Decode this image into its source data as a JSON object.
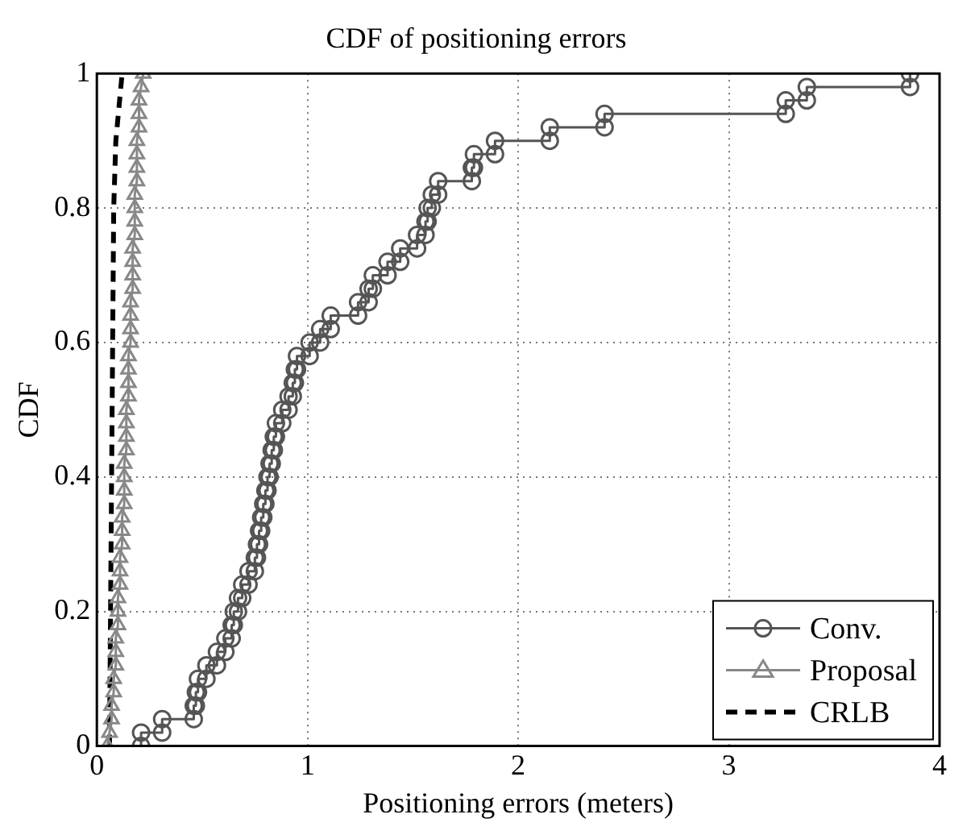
{
  "chart_data": {
    "type": "line",
    "title": "CDF of positioning errors",
    "xlabel": "Positioning errors (meters)",
    "ylabel": "CDF",
    "xlim": [
      0,
      4
    ],
    "xticks": [
      0,
      1,
      2,
      3,
      4
    ],
    "ylim": [
      0,
      1
    ],
    "yticks": [
      0,
      0.2,
      0.4,
      0.6,
      0.8,
      1
    ],
    "grid": true,
    "legend": "bottom right",
    "series": [
      {
        "name": "Conv.",
        "color": "#555555",
        "marker": "circle",
        "line_style": "solid",
        "x": [
          0.21,
          0.21,
          0.31,
          0.31,
          0.46,
          0.46,
          0.47,
          0.47,
          0.48,
          0.48,
          0.52,
          0.52,
          0.57,
          0.57,
          0.61,
          0.61,
          0.64,
          0.64,
          0.65,
          0.65,
          0.67,
          0.67,
          0.69,
          0.69,
          0.72,
          0.72,
          0.75,
          0.75,
          0.76,
          0.76,
          0.77,
          0.77,
          0.78,
          0.78,
          0.79,
          0.79,
          0.8,
          0.8,
          0.81,
          0.81,
          0.82,
          0.82,
          0.83,
          0.83,
          0.84,
          0.84,
          0.85,
          0.85,
          0.88,
          0.88,
          0.91,
          0.91,
          0.93,
          0.93,
          0.94,
          0.94,
          0.95,
          0.95,
          1.01,
          1.01,
          1.06,
          1.06,
          1.11,
          1.11,
          1.24,
          1.24,
          1.29,
          1.29,
          1.31,
          1.31,
          1.38,
          1.38,
          1.44,
          1.44,
          1.52,
          1.52,
          1.56,
          1.56,
          1.57,
          1.57,
          1.59,
          1.59,
          1.62,
          1.62,
          1.78,
          1.78,
          1.79,
          1.79,
          1.89,
          1.89,
          2.15,
          2.15,
          2.41,
          2.41,
          3.27,
          3.27,
          3.37,
          3.37,
          3.86,
          3.86
        ],
        "values": [
          0,
          0.02,
          0.02,
          0.04,
          0.04,
          0.06,
          0.06,
          0.08,
          0.08,
          0.1,
          0.1,
          0.12,
          0.12,
          0.14,
          0.14,
          0.16,
          0.16,
          0.18,
          0.18,
          0.2,
          0.2,
          0.22,
          0.22,
          0.24,
          0.24,
          0.26,
          0.26,
          0.28,
          0.28,
          0.3,
          0.3,
          0.32,
          0.32,
          0.34,
          0.34,
          0.36,
          0.36,
          0.38,
          0.38,
          0.4,
          0.4,
          0.42,
          0.42,
          0.44,
          0.44,
          0.46,
          0.46,
          0.48,
          0.48,
          0.5,
          0.5,
          0.52,
          0.52,
          0.54,
          0.54,
          0.56,
          0.56,
          0.58,
          0.58,
          0.6,
          0.6,
          0.62,
          0.62,
          0.64,
          0.64,
          0.66,
          0.66,
          0.68,
          0.68,
          0.7,
          0.7,
          0.72,
          0.72,
          0.74,
          0.74,
          0.76,
          0.76,
          0.78,
          0.78,
          0.8,
          0.8,
          0.82,
          0.82,
          0.84,
          0.84,
          0.86,
          0.86,
          0.88,
          0.88,
          0.9,
          0.9,
          0.92,
          0.92,
          0.94,
          0.94,
          0.96,
          0.96,
          0.98,
          0.98,
          1
        ]
      },
      {
        "name": "Proposal",
        "color": "#888888",
        "marker": "triangle",
        "line_style": "solid",
        "x": [
          0.05,
          0.06,
          0.07,
          0.07,
          0.08,
          0.08,
          0.09,
          0.09,
          0.09,
          0.1,
          0.1,
          0.1,
          0.11,
          0.11,
          0.11,
          0.12,
          0.12,
          0.12,
          0.13,
          0.13,
          0.13,
          0.13,
          0.14,
          0.14,
          0.14,
          0.14,
          0.15,
          0.15,
          0.15,
          0.15,
          0.16,
          0.16,
          0.16,
          0.16,
          0.17,
          0.17,
          0.17,
          0.17,
          0.18,
          0.18,
          0.18,
          0.18,
          0.19,
          0.19,
          0.19,
          0.19,
          0.2,
          0.2,
          0.2,
          0.21,
          0.22
        ],
        "values": [
          0,
          0.02,
          0.04,
          0.06,
          0.08,
          0.1,
          0.12,
          0.14,
          0.16,
          0.18,
          0.2,
          0.22,
          0.24,
          0.26,
          0.28,
          0.3,
          0.32,
          0.34,
          0.36,
          0.38,
          0.4,
          0.42,
          0.44,
          0.46,
          0.48,
          0.5,
          0.52,
          0.54,
          0.56,
          0.58,
          0.6,
          0.62,
          0.64,
          0.66,
          0.68,
          0.7,
          0.72,
          0.74,
          0.76,
          0.78,
          0.8,
          0.82,
          0.84,
          0.86,
          0.88,
          0.9,
          0.92,
          0.94,
          0.96,
          0.98,
          1
        ]
      },
      {
        "name": "CRLB",
        "color": "#000000",
        "marker": "none",
        "line_style": "dashed",
        "x": [
          0.06,
          0.07,
          0.08,
          0.09,
          0.12
        ],
        "values": [
          0,
          0.4,
          0.8,
          0.9,
          1
        ]
      }
    ]
  }
}
